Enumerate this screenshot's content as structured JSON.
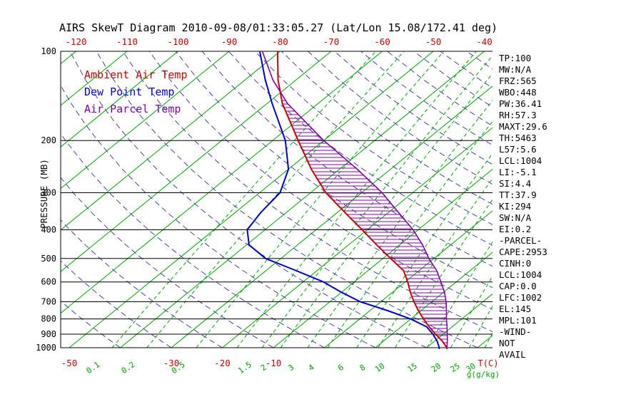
{
  "title": "AIRS SkewT Diagram 2010-09-08/01:33:05.27 (Lat/Lon 15.08/172.41 deg)",
  "legend": [
    {
      "label": "Ambient Air Temp",
      "color": "#cc0000"
    },
    {
      "label": "Dew Point Temp",
      "color": "#0000cc"
    },
    {
      "label": "Air Parcel Temp",
      "color": "#8000a8"
    }
  ],
  "axes": {
    "y_label": "PRESSURE (MB)",
    "pressure_ticks": [
      100,
      200,
      300,
      400,
      500,
      600,
      700,
      800,
      900,
      1000
    ],
    "top_temp_ticks": [
      -120,
      -110,
      -100,
      -90,
      -80,
      -70,
      -60,
      -50,
      -40
    ],
    "bottom_temp_ticks": [
      -50,
      -30,
      -20,
      -10
    ],
    "bottom_temp_unit": "T(C)",
    "mixing_ratio_ticks": [
      0.1,
      0.2,
      0.5,
      1.5,
      2,
      3,
      4,
      6,
      8,
      10,
      15,
      20,
      25,
      30
    ],
    "mixing_ratio_unit": "g(g/kg)"
  },
  "stats_panel": [
    "TP:100",
    "MW:N/A",
    "FRZ:565",
    "WBO:448",
    "PW:36.41",
    "RH:57.3",
    "MAXT:29.6",
    "TH:5463",
    "L57:5.6",
    "LCL:1004",
    "LI:-5.1",
    "SI:4.4",
    "TT:37.9",
    "KI:294",
    "SW:N/A",
    "EI:0.2",
    "-PARCEL-",
    "CAPE:2953",
    "CINH:0",
    "LCL:1004",
    "CAP:0.0",
    "LFC:1002",
    "EL:145",
    "MPL:101",
    "-WIND-",
    "NOT",
    "AVAIL"
  ],
  "chart_data": {
    "type": "line",
    "subtype": "skewt-log-p",
    "y_axis": {
      "label": "PRESSURE (MB)",
      "scale": "log",
      "range": [
        100,
        1000
      ]
    },
    "x_axis": {
      "unit": "T(C)",
      "skewed": true,
      "temp_range_at_100mb": [
        -120,
        -40
      ],
      "temp_range_at_1000mb": [
        -50,
        40
      ]
    },
    "isotherms": {
      "min": -160,
      "max": 40,
      "step": 10
    },
    "mixing_ratio_lines": [
      0.1,
      0.2,
      0.5,
      1,
      1.5,
      2,
      3,
      4,
      6,
      8,
      10,
      15,
      20,
      25,
      30
    ],
    "dry_adiabats_theta_C": [
      -40,
      -30,
      -20,
      -10,
      0,
      10,
      20,
      30,
      40,
      50,
      60,
      70,
      80,
      90,
      100,
      110,
      120,
      130,
      140,
      150,
      160,
      170,
      180
    ],
    "series": [
      {
        "id": "ambient",
        "name": "Ambient Air Temp",
        "color": "#cc0000",
        "width": 2,
        "points": [
          [
            1010,
            24.3
          ],
          [
            1000,
            24
          ],
          [
            950,
            21.5
          ],
          [
            900,
            18.5
          ],
          [
            850,
            15.5
          ],
          [
            800,
            12.5
          ],
          [
            750,
            9.5
          ],
          [
            700,
            6.5
          ],
          [
            650,
            3.5
          ],
          [
            600,
            0.5
          ],
          [
            550,
            -3
          ],
          [
            500,
            -8.5
          ],
          [
            450,
            -14.5
          ],
          [
            400,
            -21
          ],
          [
            350,
            -28.5
          ],
          [
            300,
            -37
          ],
          [
            250,
            -45.5
          ],
          [
            200,
            -55
          ],
          [
            150,
            -67
          ],
          [
            125,
            -73.5
          ],
          [
            100,
            -80.5
          ]
        ]
      },
      {
        "id": "dewpoint",
        "name": "Dew Point Temp",
        "color": "#0000cc",
        "width": 2,
        "points": [
          [
            1010,
            22.8
          ],
          [
            1000,
            22.5
          ],
          [
            950,
            20.5
          ],
          [
            900,
            18
          ],
          [
            850,
            15
          ],
          [
            800,
            10
          ],
          [
            750,
            3.5
          ],
          [
            700,
            -4
          ],
          [
            650,
            -10
          ],
          [
            600,
            -16
          ],
          [
            550,
            -24
          ],
          [
            500,
            -33
          ],
          [
            450,
            -39.5
          ],
          [
            400,
            -43.5
          ],
          [
            350,
            -45
          ],
          [
            300,
            -46
          ],
          [
            250,
            -50
          ],
          [
            200,
            -57.5
          ],
          [
            150,
            -69
          ],
          [
            125,
            -76
          ],
          [
            100,
            -84
          ]
        ]
      },
      {
        "id": "parcel",
        "name": "Air Parcel Temp",
        "color": "#8000a8",
        "width": 1.6,
        "points": [
          [
            1010,
            24.3
          ],
          [
            1000,
            24
          ],
          [
            950,
            22.5
          ],
          [
            900,
            20.8
          ],
          [
            850,
            19
          ],
          [
            800,
            17
          ],
          [
            750,
            15
          ],
          [
            700,
            12.8
          ],
          [
            650,
            10.2
          ],
          [
            600,
            7
          ],
          [
            550,
            3.5
          ],
          [
            500,
            -1
          ],
          [
            450,
            -5.5
          ],
          [
            400,
            -11
          ],
          [
            350,
            -18
          ],
          [
            300,
            -26
          ],
          [
            250,
            -36.5
          ],
          [
            200,
            -50
          ],
          [
            150,
            -66
          ],
          [
            125,
            -74.5
          ],
          [
            100,
            -83.5
          ]
        ]
      }
    ],
    "cape_hatch": {
      "between": [
        "parcel",
        "ambient"
      ],
      "from_mb": 1000,
      "to_mb": 145,
      "style": "horizontal-lines"
    },
    "colors": {
      "isotherm": "#00a400",
      "mixing_ratio": "#00a400",
      "dry_adiabat": "#4444aa",
      "pressure_line": "#000000",
      "temp_label": "#cc0000",
      "hatch": "#8000a8"
    }
  }
}
